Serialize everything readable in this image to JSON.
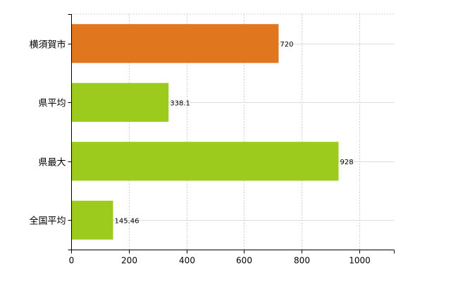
{
  "chart_data": {
    "type": "bar",
    "orientation": "horizontal",
    "categories": [
      "横須賀市",
      "県平均",
      "県最大",
      "全国平均"
    ],
    "values": [
      720,
      338.1,
      928,
      145.46
    ],
    "value_labels": [
      "720",
      "338.1",
      "928",
      "145.46"
    ],
    "colors": [
      "#e0761e",
      "#9ccb1e",
      "#9ccb1e",
      "#9ccb1e"
    ],
    "x_ticks": [
      0,
      200,
      400,
      600,
      800,
      1000
    ],
    "xlim": [
      0,
      1120
    ],
    "title": "",
    "xlabel": "",
    "ylabel": "",
    "grid": true,
    "legend": "none"
  }
}
